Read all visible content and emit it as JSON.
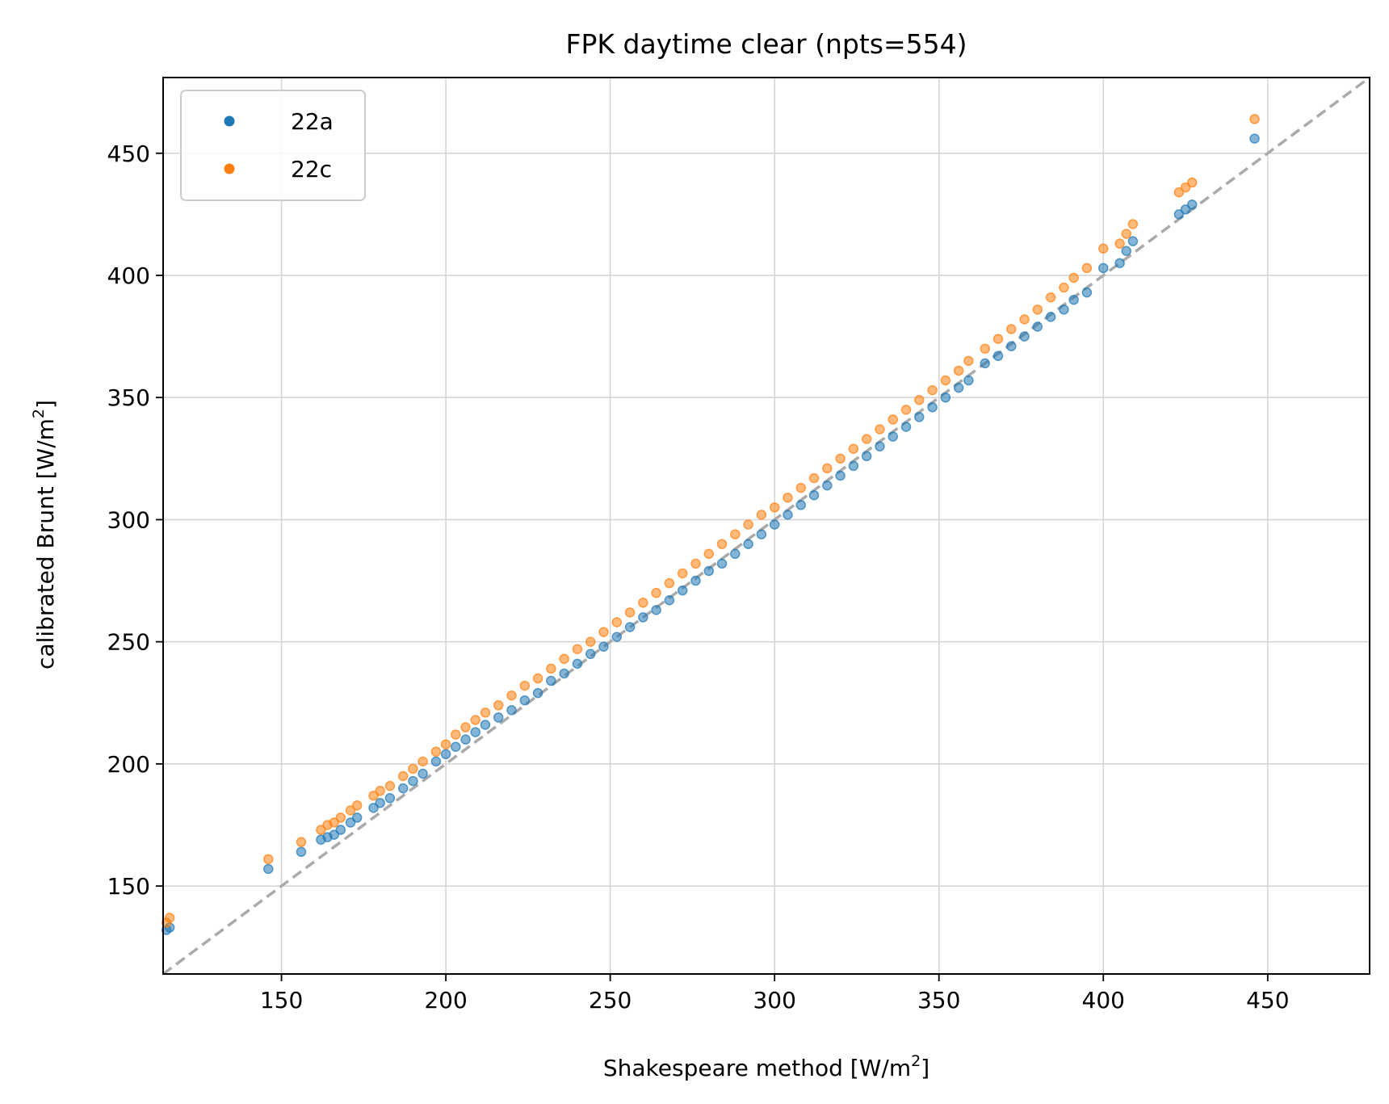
{
  "chart_data": {
    "type": "scatter",
    "title": "FPK daytime clear (npts=554)",
    "xlabel": {
      "main": "Shakespeare method [W/m",
      "sup": "2",
      "end": "]"
    },
    "ylabel": {
      "main": "calibrated Brunt [W/m",
      "sup": "2",
      "end": "]"
    },
    "xlim": [
      114,
      481
    ],
    "ylim": [
      114,
      481
    ],
    "xticks": [
      150,
      200,
      250,
      300,
      350,
      400,
      450
    ],
    "yticks": [
      150,
      200,
      250,
      300,
      350,
      400,
      450
    ],
    "grid": true,
    "legend_position": "upper left",
    "reference_line": {
      "style": "dashed",
      "color": "#aaaaaa",
      "slope": 1,
      "intercept": 0
    },
    "series": [
      {
        "name": "22a",
        "color": "#1f77b4",
        "points": [
          [
            115,
            132
          ],
          [
            116,
            133
          ],
          [
            146,
            157
          ],
          [
            156,
            164
          ],
          [
            162,
            169
          ],
          [
            164,
            170
          ],
          [
            166,
            171
          ],
          [
            168,
            173
          ],
          [
            171,
            176
          ],
          [
            173,
            178
          ],
          [
            178,
            182
          ],
          [
            180,
            184
          ],
          [
            183,
            186
          ],
          [
            187,
            190
          ],
          [
            190,
            193
          ],
          [
            193,
            196
          ],
          [
            197,
            201
          ],
          [
            200,
            204
          ],
          [
            203,
            207
          ],
          [
            206,
            210
          ],
          [
            209,
            213
          ],
          [
            212,
            216
          ],
          [
            216,
            219
          ],
          [
            220,
            222
          ],
          [
            224,
            226
          ],
          [
            228,
            229
          ],
          [
            232,
            234
          ],
          [
            236,
            237
          ],
          [
            240,
            241
          ],
          [
            244,
            245
          ],
          [
            248,
            248
          ],
          [
            252,
            252
          ],
          [
            256,
            256
          ],
          [
            260,
            260
          ],
          [
            264,
            263
          ],
          [
            268,
            267
          ],
          [
            272,
            271
          ],
          [
            276,
            275
          ],
          [
            280,
            279
          ],
          [
            284,
            282
          ],
          [
            288,
            286
          ],
          [
            292,
            290
          ],
          [
            296,
            294
          ],
          [
            300,
            298
          ],
          [
            304,
            302
          ],
          [
            308,
            306
          ],
          [
            312,
            310
          ],
          [
            316,
            314
          ],
          [
            320,
            318
          ],
          [
            324,
            322
          ],
          [
            328,
            326
          ],
          [
            332,
            330
          ],
          [
            336,
            334
          ],
          [
            340,
            338
          ],
          [
            344,
            342
          ],
          [
            348,
            346
          ],
          [
            352,
            350
          ],
          [
            356,
            354
          ],
          [
            359,
            357
          ],
          [
            364,
            364
          ],
          [
            368,
            367
          ],
          [
            372,
            371
          ],
          [
            376,
            375
          ],
          [
            380,
            379
          ],
          [
            384,
            383
          ],
          [
            388,
            386
          ],
          [
            391,
            390
          ],
          [
            395,
            393
          ],
          [
            400,
            403
          ],
          [
            405,
            405
          ],
          [
            407,
            410
          ],
          [
            409,
            414
          ],
          [
            423,
            425
          ],
          [
            425,
            427
          ],
          [
            427,
            429
          ],
          [
            446,
            456
          ]
        ]
      },
      {
        "name": "22c",
        "color": "#ff7f0e",
        "points": [
          [
            115,
            135
          ],
          [
            116,
            137
          ],
          [
            146,
            161
          ],
          [
            156,
            168
          ],
          [
            162,
            173
          ],
          [
            164,
            175
          ],
          [
            166,
            176
          ],
          [
            168,
            178
          ],
          [
            171,
            181
          ],
          [
            173,
            183
          ],
          [
            178,
            187
          ],
          [
            180,
            189
          ],
          [
            183,
            191
          ],
          [
            187,
            195
          ],
          [
            190,
            198
          ],
          [
            193,
            201
          ],
          [
            197,
            205
          ],
          [
            200,
            208
          ],
          [
            203,
            212
          ],
          [
            206,
            215
          ],
          [
            209,
            218
          ],
          [
            212,
            221
          ],
          [
            216,
            224
          ],
          [
            220,
            228
          ],
          [
            224,
            232
          ],
          [
            228,
            235
          ],
          [
            232,
            239
          ],
          [
            236,
            243
          ],
          [
            240,
            247
          ],
          [
            244,
            250
          ],
          [
            248,
            254
          ],
          [
            252,
            258
          ],
          [
            256,
            262
          ],
          [
            260,
            266
          ],
          [
            264,
            270
          ],
          [
            268,
            274
          ],
          [
            272,
            278
          ],
          [
            276,
            282
          ],
          [
            280,
            286
          ],
          [
            284,
            290
          ],
          [
            288,
            294
          ],
          [
            292,
            298
          ],
          [
            296,
            302
          ],
          [
            300,
            305
          ],
          [
            304,
            309
          ],
          [
            308,
            313
          ],
          [
            312,
            317
          ],
          [
            316,
            321
          ],
          [
            320,
            325
          ],
          [
            324,
            329
          ],
          [
            328,
            333
          ],
          [
            332,
            337
          ],
          [
            336,
            341
          ],
          [
            340,
            345
          ],
          [
            344,
            349
          ],
          [
            348,
            353
          ],
          [
            352,
            357
          ],
          [
            356,
            361
          ],
          [
            359,
            365
          ],
          [
            364,
            370
          ],
          [
            368,
            374
          ],
          [
            372,
            378
          ],
          [
            376,
            382
          ],
          [
            380,
            386
          ],
          [
            384,
            391
          ],
          [
            388,
            395
          ],
          [
            391,
            399
          ],
          [
            395,
            403
          ],
          [
            400,
            411
          ],
          [
            405,
            413
          ],
          [
            407,
            417
          ],
          [
            409,
            421
          ],
          [
            423,
            434
          ],
          [
            425,
            436
          ],
          [
            427,
            438
          ],
          [
            446,
            464
          ]
        ]
      }
    ]
  }
}
